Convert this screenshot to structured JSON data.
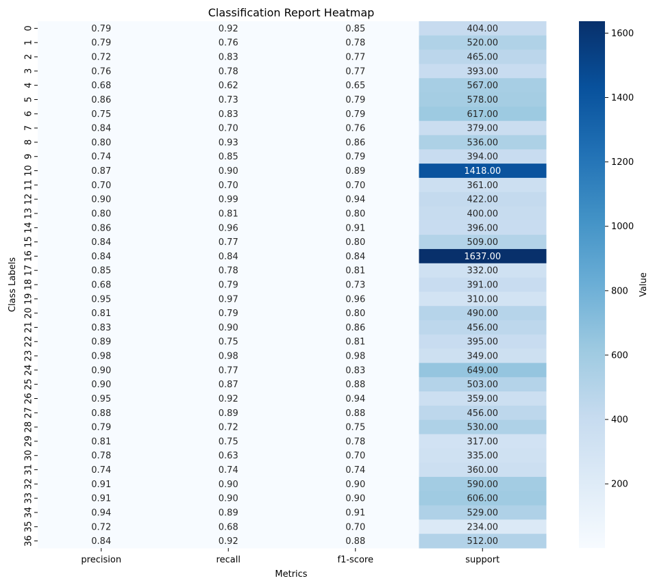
{
  "chart_data": {
    "type": "heatmap",
    "title": "Classification Report Heatmap",
    "xlabel": "Metrics",
    "ylabel": "Class Labels",
    "columns": [
      "precision",
      "recall",
      "f1-score",
      "support"
    ],
    "rows": [
      "0",
      "1",
      "2",
      "3",
      "4",
      "5",
      "6",
      "7",
      "8",
      "9",
      "10",
      "11",
      "12",
      "13",
      "14",
      "15",
      "16",
      "17",
      "18",
      "19",
      "20",
      "21",
      "22",
      "23",
      "24",
      "25",
      "26",
      "27",
      "28",
      "29",
      "30",
      "31",
      "32",
      "33",
      "34",
      "35",
      "36"
    ],
    "values": [
      [
        0.79,
        0.92,
        0.85,
        404.0
      ],
      [
        0.79,
        0.76,
        0.78,
        520.0
      ],
      [
        0.72,
        0.83,
        0.77,
        465.0
      ],
      [
        0.76,
        0.78,
        0.77,
        393.0
      ],
      [
        0.68,
        0.62,
        0.65,
        567.0
      ],
      [
        0.86,
        0.73,
        0.79,
        578.0
      ],
      [
        0.75,
        0.83,
        0.79,
        617.0
      ],
      [
        0.84,
        0.7,
        0.76,
        379.0
      ],
      [
        0.8,
        0.93,
        0.86,
        536.0
      ],
      [
        0.74,
        0.85,
        0.79,
        394.0
      ],
      [
        0.87,
        0.9,
        0.89,
        1418.0
      ],
      [
        0.7,
        0.7,
        0.7,
        361.0
      ],
      [
        0.9,
        0.99,
        0.94,
        422.0
      ],
      [
        0.8,
        0.81,
        0.8,
        400.0
      ],
      [
        0.86,
        0.96,
        0.91,
        396.0
      ],
      [
        0.84,
        0.77,
        0.8,
        509.0
      ],
      [
        0.84,
        0.84,
        0.84,
        1637.0
      ],
      [
        0.85,
        0.78,
        0.81,
        332.0
      ],
      [
        0.68,
        0.79,
        0.73,
        391.0
      ],
      [
        0.95,
        0.97,
        0.96,
        310.0
      ],
      [
        0.81,
        0.79,
        0.8,
        490.0
      ],
      [
        0.83,
        0.9,
        0.86,
        456.0
      ],
      [
        0.89,
        0.75,
        0.81,
        395.0
      ],
      [
        0.98,
        0.98,
        0.98,
        349.0
      ],
      [
        0.9,
        0.77,
        0.83,
        649.0
      ],
      [
        0.9,
        0.87,
        0.88,
        503.0
      ],
      [
        0.95,
        0.92,
        0.94,
        359.0
      ],
      [
        0.88,
        0.89,
        0.88,
        456.0
      ],
      [
        0.79,
        0.72,
        0.75,
        530.0
      ],
      [
        0.81,
        0.75,
        0.78,
        317.0
      ],
      [
        0.78,
        0.63,
        0.7,
        335.0
      ],
      [
        0.74,
        0.74,
        0.74,
        360.0
      ],
      [
        0.91,
        0.9,
        0.9,
        590.0
      ],
      [
        0.91,
        0.9,
        0.9,
        606.0
      ],
      [
        0.94,
        0.89,
        0.91,
        529.0
      ],
      [
        0.72,
        0.68,
        0.7,
        234.0
      ],
      [
        0.84,
        0.92,
        0.88,
        512.0
      ]
    ],
    "value_format": "0.00",
    "colormap": "Blues",
    "colormap_stops": [
      "#f7fbff",
      "#deebf7",
      "#c6dbef",
      "#9ecae1",
      "#6baed6",
      "#4292c6",
      "#2171b5",
      "#08519c",
      "#08306b"
    ],
    "color_range": [
      0.62,
      1637.0
    ],
    "colorbar": {
      "label": "Value",
      "ticks": [
        200,
        400,
        600,
        800,
        1000,
        1200,
        1400,
        1600
      ]
    },
    "grid": false,
    "legend": "colorbar-right"
  }
}
